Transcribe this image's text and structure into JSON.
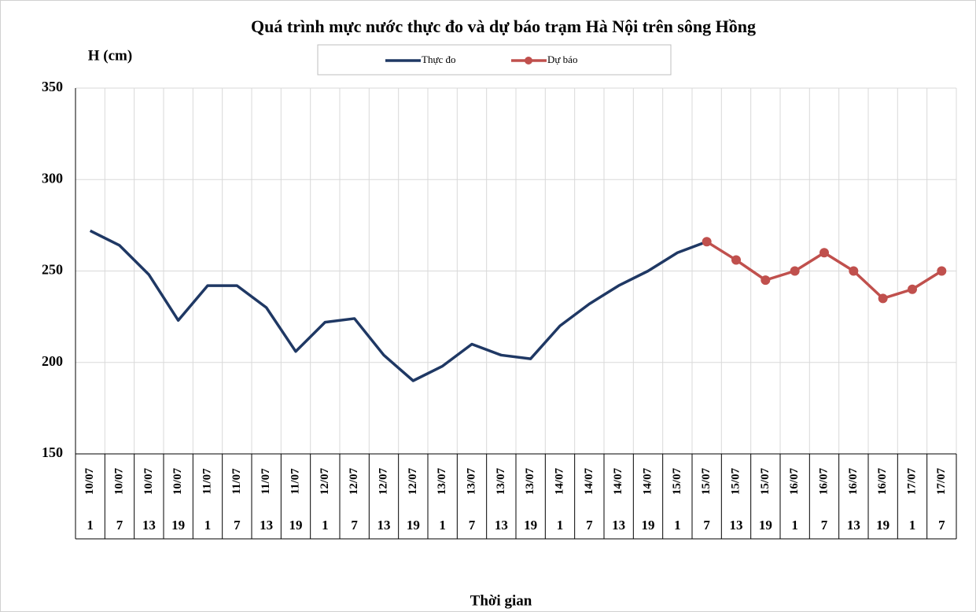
{
  "chart_data": {
    "type": "line",
    "title": "Quá trình  mực nước thực đo và dự báo trạm Hà Nội trên sông Hồng",
    "y_label": "H (cm)",
    "x_label": "Thời gian",
    "categories": [
      "10/07",
      "10/07",
      "10/07",
      "10/07",
      "11/07",
      "11/07",
      "11/07",
      "11/07",
      "12/07",
      "12/07",
      "12/07",
      "12/07",
      "13/07",
      "13/07",
      "13/07",
      "13/07",
      "14/07",
      "14/07",
      "14/07",
      "14/07",
      "15/07",
      "15/07",
      "15/07",
      "15/07",
      "16/07",
      "16/07",
      "16/07",
      "16/07",
      "17/07",
      "17/07"
    ],
    "category_hours": [
      "1",
      "7",
      "13",
      "19",
      "1",
      "7",
      "13",
      "19",
      "1",
      "7",
      "13",
      "19",
      "1",
      "7",
      "13",
      "19",
      "1",
      "7",
      "13",
      "19",
      "1",
      "7",
      "13",
      "19",
      "1",
      "7",
      "13",
      "19",
      "1",
      "7"
    ],
    "series": [
      {
        "name": "Thực đo",
        "color": "#1f3864",
        "marker": false,
        "values": [
          272,
          264,
          248,
          223,
          242,
          242,
          230,
          206,
          222,
          224,
          204,
          190,
          198,
          210,
          204,
          202,
          220,
          232,
          242,
          250,
          260,
          266,
          null,
          null,
          null,
          null,
          null,
          null,
          null,
          null
        ]
      },
      {
        "name": "Dự báo",
        "color": "#c0504d",
        "marker": true,
        "values": [
          null,
          null,
          null,
          null,
          null,
          null,
          null,
          null,
          null,
          null,
          null,
          null,
          null,
          null,
          null,
          null,
          null,
          null,
          null,
          null,
          null,
          266,
          256,
          245,
          250,
          260,
          250,
          235,
          240,
          250
        ]
      }
    ],
    "ylim": [
      150,
      350
    ],
    "yticks": [
      150,
      200,
      250,
      300,
      350
    ],
    "grid": true
  }
}
